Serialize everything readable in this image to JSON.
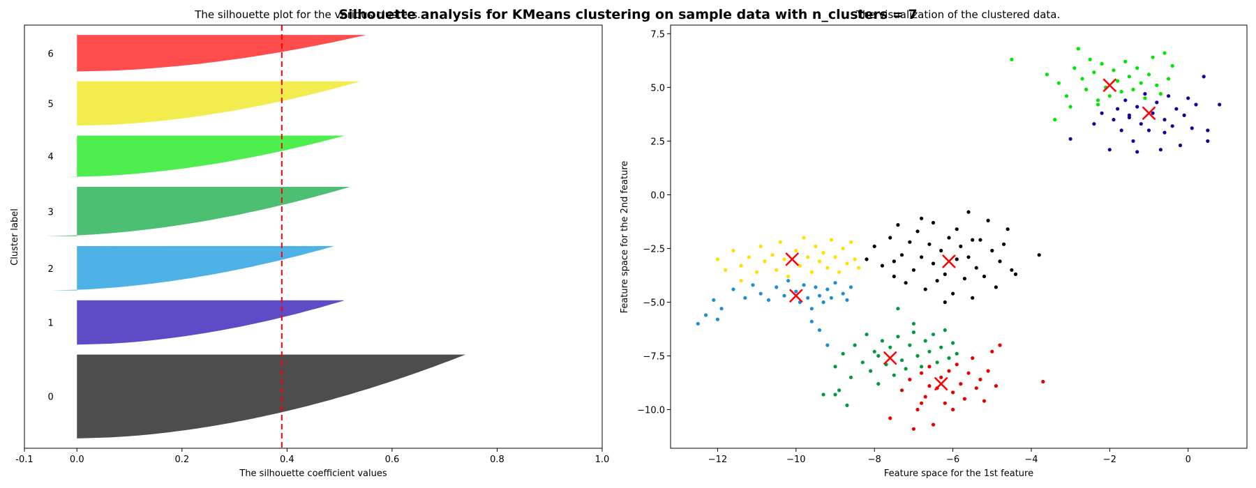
{
  "suptitle": "Silhouette analysis for KMeans clustering on sample data with n_clusters = 7",
  "chart_data": [
    {
      "type": "area",
      "title": "The silhouette plot for the various clusters.",
      "xlabel": "The silhouette coefficient values",
      "ylabel": "Cluster label",
      "xlim": [
        -0.1,
        1.0
      ],
      "xticks": [
        -0.1,
        0.0,
        0.2,
        0.4,
        0.6,
        0.8,
        1.0
      ],
      "average_silhouette_score": 0.39,
      "reference_line_color": "#ff0000",
      "grid": false,
      "clusters": [
        {
          "label": "0",
          "color": "#4d4d4d",
          "size": 85,
          "min": 0.0,
          "max": 0.74
        },
        {
          "label": "1",
          "color": "#5e4cc6",
          "size": 45,
          "min": 0.0,
          "max": 0.51
        },
        {
          "label": "2",
          "color": "#4fb2e6",
          "size": 45,
          "min": -0.05,
          "max": 0.49
        },
        {
          "label": "3",
          "color": "#4cbf73",
          "size": 50,
          "min": -0.06,
          "max": 0.52
        },
        {
          "label": "4",
          "color": "#4fee4f",
          "size": 42,
          "min": -0.02,
          "max": 0.51
        },
        {
          "label": "5",
          "color": "#f3ec4f",
          "size": 45,
          "min": 0.0,
          "max": 0.54
        },
        {
          "label": "6",
          "color": "#ff4d4d",
          "size": 37,
          "min": 0.0,
          "max": 0.55
        }
      ]
    },
    {
      "type": "scatter",
      "title": "The visualization of the clustered data.",
      "xlabel": "Feature space for the 1st feature",
      "ylabel": "Feature space for the 2nd feature",
      "xlim": [
        -13.2,
        1.5
      ],
      "ylim": [
        -11.8,
        7.9
      ],
      "xticks": [
        -12,
        -10,
        -8,
        -6,
        -4,
        -2,
        0
      ],
      "yticks": [
        -10.0,
        -7.5,
        -5.0,
        -2.5,
        0.0,
        2.5,
        5.0,
        7.5
      ],
      "grid": false,
      "center_marker_color": "#ff0000",
      "clusters": [
        {
          "color": "#000000",
          "center": [
            -6.1,
            -3.1
          ],
          "points": [
            [
              -8.2,
              -3.0
            ],
            [
              -8.0,
              -2.4
            ],
            [
              -7.8,
              -3.3
            ],
            [
              -7.6,
              -2.0
            ],
            [
              -7.5,
              -3.8
            ],
            [
              -7.4,
              -1.4
            ],
            [
              -7.3,
              -2.8
            ],
            [
              -7.2,
              -4.1
            ],
            [
              -7.1,
              -2.2
            ],
            [
              -7.0,
              -3.5
            ],
            [
              -6.9,
              -1.7
            ],
            [
              -6.8,
              -2.9
            ],
            [
              -6.7,
              -4.4
            ],
            [
              -6.6,
              -2.3
            ],
            [
              -6.5,
              -3.2
            ],
            [
              -6.5,
              -1.3
            ],
            [
              -6.4,
              -4.0
            ],
            [
              -6.3,
              -2.6
            ],
            [
              -6.2,
              -3.7
            ],
            [
              -6.1,
              -2.0
            ],
            [
              -6.0,
              -4.6
            ],
            [
              -5.9,
              -3.0
            ],
            [
              -5.9,
              -1.6
            ],
            [
              -5.8,
              -2.4
            ],
            [
              -5.7,
              -3.9
            ],
            [
              -5.6,
              -0.8
            ],
            [
              -5.6,
              -2.9
            ],
            [
              -5.5,
              -4.8
            ],
            [
              -5.4,
              -3.4
            ],
            [
              -5.3,
              -2.1
            ],
            [
              -5.2,
              -3.8
            ],
            [
              -5.1,
              -1.2
            ],
            [
              -5.0,
              -2.6
            ],
            [
              -4.9,
              -4.3
            ],
            [
              -4.8,
              -3.1
            ],
            [
              -4.7,
              -2.3
            ],
            [
              -4.6,
              -1.6
            ],
            [
              -4.5,
              -3.5
            ],
            [
              -4.4,
              -3.7
            ],
            [
              -3.8,
              -2.8
            ],
            [
              -6.8,
              -1.1
            ],
            [
              -7.5,
              -3.1
            ],
            [
              -6.2,
              -5.0
            ],
            [
              -5.5,
              -2.1
            ]
          ]
        },
        {
          "color": "#ffe000",
          "center": [
            -10.1,
            -3.0
          ],
          "points": [
            [
              -12.0,
              -3.0
            ],
            [
              -11.8,
              -3.5
            ],
            [
              -11.6,
              -2.6
            ],
            [
              -11.4,
              -3.3
            ],
            [
              -11.2,
              -2.9
            ],
            [
              -11.0,
              -3.6
            ],
            [
              -10.9,
              -2.4
            ],
            [
              -10.8,
              -3.1
            ],
            [
              -10.6,
              -2.8
            ],
            [
              -10.5,
              -3.5
            ],
            [
              -10.4,
              -2.2
            ],
            [
              -10.3,
              -3.0
            ],
            [
              -10.2,
              -3.8
            ],
            [
              -10.0,
              -2.6
            ],
            [
              -9.9,
              -3.3
            ],
            [
              -9.8,
              -2.0
            ],
            [
              -9.7,
              -2.9
            ],
            [
              -9.6,
              -3.6
            ],
            [
              -9.5,
              -2.4
            ],
            [
              -9.4,
              -3.1
            ],
            [
              -9.3,
              -2.7
            ],
            [
              -9.2,
              -3.4
            ],
            [
              -9.1,
              -2.1
            ],
            [
              -9.0,
              -2.9
            ],
            [
              -8.9,
              -3.6
            ],
            [
              -8.8,
              -2.5
            ],
            [
              -8.7,
              -3.2
            ],
            [
              -8.6,
              -2.2
            ],
            [
              -8.5,
              -3.0
            ],
            [
              -8.4,
              -3.4
            ],
            [
              -11.4,
              -4.0
            ]
          ]
        },
        {
          "color": "#1a8fd6",
          "center": [
            -10.0,
            -4.7
          ],
          "points": [
            [
              -12.5,
              -6.0
            ],
            [
              -12.3,
              -5.6
            ],
            [
              -12.1,
              -4.9
            ],
            [
              -11.9,
              -5.3
            ],
            [
              -11.6,
              -4.4
            ],
            [
              -11.3,
              -4.8
            ],
            [
              -11.1,
              -4.2
            ],
            [
              -10.9,
              -4.6
            ],
            [
              -10.7,
              -4.9
            ],
            [
              -10.5,
              -4.3
            ],
            [
              -10.3,
              -4.7
            ],
            [
              -10.2,
              -4.0
            ],
            [
              -10.0,
              -4.5
            ],
            [
              -9.9,
              -5.0
            ],
            [
              -9.8,
              -4.2
            ],
            [
              -9.7,
              -4.8
            ],
            [
              -9.6,
              -5.3
            ],
            [
              -9.5,
              -4.3
            ],
            [
              -9.4,
              -4.7
            ],
            [
              -9.3,
              -5.0
            ],
            [
              -9.2,
              -4.4
            ],
            [
              -9.1,
              -4.8
            ],
            [
              -9.0,
              -4.1
            ],
            [
              -8.8,
              -4.6
            ],
            [
              -8.6,
              -4.3
            ],
            [
              -9.6,
              -5.9
            ],
            [
              -9.4,
              -6.3
            ],
            [
              -9.2,
              -7.0
            ],
            [
              -8.7,
              -4.9
            ],
            [
              -12.0,
              -5.8
            ]
          ]
        },
        {
          "color": "#009940",
          "center": [
            -7.6,
            -7.6
          ],
          "points": [
            [
              -9.3,
              -9.3
            ],
            [
              -9.0,
              -8.0
            ],
            [
              -8.8,
              -7.4
            ],
            [
              -8.6,
              -8.5
            ],
            [
              -8.5,
              -7.0
            ],
            [
              -8.3,
              -7.8
            ],
            [
              -8.2,
              -6.5
            ],
            [
              -8.1,
              -8.2
            ],
            [
              -8.0,
              -7.3
            ],
            [
              -7.9,
              -8.8
            ],
            [
              -7.8,
              -6.8
            ],
            [
              -7.7,
              -7.9
            ],
            [
              -7.6,
              -7.1
            ],
            [
              -7.5,
              -8.4
            ],
            [
              -7.4,
              -6.6
            ],
            [
              -7.3,
              -7.7
            ],
            [
              -7.2,
              -8.1
            ],
            [
              -7.1,
              -7.0
            ],
            [
              -7.0,
              -6.4
            ],
            [
              -6.9,
              -7.5
            ],
            [
              -6.8,
              -8.0
            ],
            [
              -6.7,
              -6.8
            ],
            [
              -6.6,
              -7.3
            ],
            [
              -6.5,
              -6.5
            ],
            [
              -6.4,
              -7.8
            ],
            [
              -6.3,
              -7.1
            ],
            [
              -6.2,
              -6.3
            ],
            [
              -6.1,
              -7.6
            ],
            [
              -6.0,
              -6.9
            ],
            [
              -5.9,
              -7.4
            ],
            [
              -8.9,
              -9.1
            ],
            [
              -9.0,
              -9.3
            ],
            [
              -8.7,
              -9.8
            ],
            [
              -7.9,
              -7.5
            ],
            [
              -7.4,
              -5.3
            ],
            [
              -7.0,
              -6.0
            ]
          ]
        },
        {
          "color": "#e60000",
          "center": [
            -6.3,
            -8.8
          ],
          "points": [
            [
              -7.6,
              -10.4
            ],
            [
              -7.3,
              -9.1
            ],
            [
              -7.1,
              -8.6
            ],
            [
              -6.9,
              -10.0
            ],
            [
              -6.8,
              -8.3
            ],
            [
              -6.7,
              -9.4
            ],
            [
              -6.6,
              -8.0
            ],
            [
              -6.5,
              -10.7
            ],
            [
              -6.4,
              -9.0
            ],
            [
              -6.3,
              -8.5
            ],
            [
              -6.2,
              -9.7
            ],
            [
              -6.1,
              -8.2
            ],
            [
              -6.0,
              -9.2
            ],
            [
              -5.9,
              -7.9
            ],
            [
              -5.8,
              -8.8
            ],
            [
              -5.7,
              -9.5
            ],
            [
              -5.6,
              -8.3
            ],
            [
              -5.5,
              -7.6
            ],
            [
              -5.4,
              -9.0
            ],
            [
              -5.3,
              -8.6
            ],
            [
              -5.2,
              -9.6
            ],
            [
              -5.1,
              -8.2
            ],
            [
              -5.0,
              -7.3
            ],
            [
              -4.9,
              -8.9
            ],
            [
              -4.8,
              -7.0
            ],
            [
              -7.0,
              -10.9
            ],
            [
              -6.8,
              -9.7
            ],
            [
              -3.7,
              -8.7
            ],
            [
              -6.0,
              -10.0
            ],
            [
              -6.6,
              -8.9
            ]
          ]
        },
        {
          "color": "#00e600",
          "center": [
            -2.0,
            5.1
          ],
          "points": [
            [
              -4.5,
              6.3
            ],
            [
              -3.6,
              5.6
            ],
            [
              -3.3,
              5.2
            ],
            [
              -3.1,
              4.6
            ],
            [
              -2.9,
              5.9
            ],
            [
              -2.8,
              6.8
            ],
            [
              -2.7,
              5.4
            ],
            [
              -2.6,
              4.9
            ],
            [
              -2.5,
              6.3
            ],
            [
              -2.4,
              5.7
            ],
            [
              -2.3,
              4.4
            ],
            [
              -2.2,
              6.1
            ],
            [
              -2.1,
              5.0
            ],
            [
              -2.0,
              4.6
            ],
            [
              -1.9,
              5.8
            ],
            [
              -1.8,
              5.3
            ],
            [
              -1.7,
              4.8
            ],
            [
              -1.6,
              6.2
            ],
            [
              -1.5,
              5.5
            ],
            [
              -1.4,
              4.9
            ],
            [
              -1.3,
              5.9
            ],
            [
              -1.2,
              5.2
            ],
            [
              -1.1,
              4.5
            ],
            [
              -1.0,
              5.6
            ],
            [
              -0.9,
              6.4
            ],
            [
              -0.8,
              5.1
            ],
            [
              -0.7,
              4.7
            ],
            [
              -0.6,
              6.6
            ],
            [
              -0.5,
              5.4
            ],
            [
              -0.4,
              6.0
            ],
            [
              -3.4,
              3.5
            ],
            [
              -3.0,
              4.1
            ],
            [
              -2.3,
              4.2
            ]
          ]
        },
        {
          "color": "#1a0099",
          "center": [
            -1.0,
            3.8
          ],
          "points": [
            [
              -3.0,
              2.6
            ],
            [
              -2.4,
              3.3
            ],
            [
              -2.2,
              3.8
            ],
            [
              -2.0,
              2.1
            ],
            [
              -1.9,
              3.5
            ],
            [
              -1.8,
              4.0
            ],
            [
              -1.7,
              3.0
            ],
            [
              -1.6,
              4.4
            ],
            [
              -1.5,
              3.6
            ],
            [
              -1.4,
              2.5
            ],
            [
              -1.3,
              4.1
            ],
            [
              -1.2,
              3.3
            ],
            [
              -1.1,
              4.7
            ],
            [
              -1.0,
              3.0
            ],
            [
              -0.9,
              3.8
            ],
            [
              -0.8,
              4.3
            ],
            [
              -0.7,
              2.1
            ],
            [
              -0.6,
              3.5
            ],
            [
              -0.5,
              4.6
            ],
            [
              -0.4,
              3.2
            ],
            [
              -0.3,
              4.0
            ],
            [
              -0.2,
              2.3
            ],
            [
              -0.1,
              3.7
            ],
            [
              0.0,
              4.5
            ],
            [
              0.1,
              3.1
            ],
            [
              0.2,
              4.2
            ],
            [
              0.4,
              5.5
            ],
            [
              0.5,
              3.0
            ],
            [
              0.5,
              2.5
            ],
            [
              0.8,
              4.2
            ],
            [
              -1.3,
              2.0
            ],
            [
              -0.6,
              2.9
            ],
            [
              -1.5,
              3.7
            ]
          ]
        }
      ]
    }
  ]
}
